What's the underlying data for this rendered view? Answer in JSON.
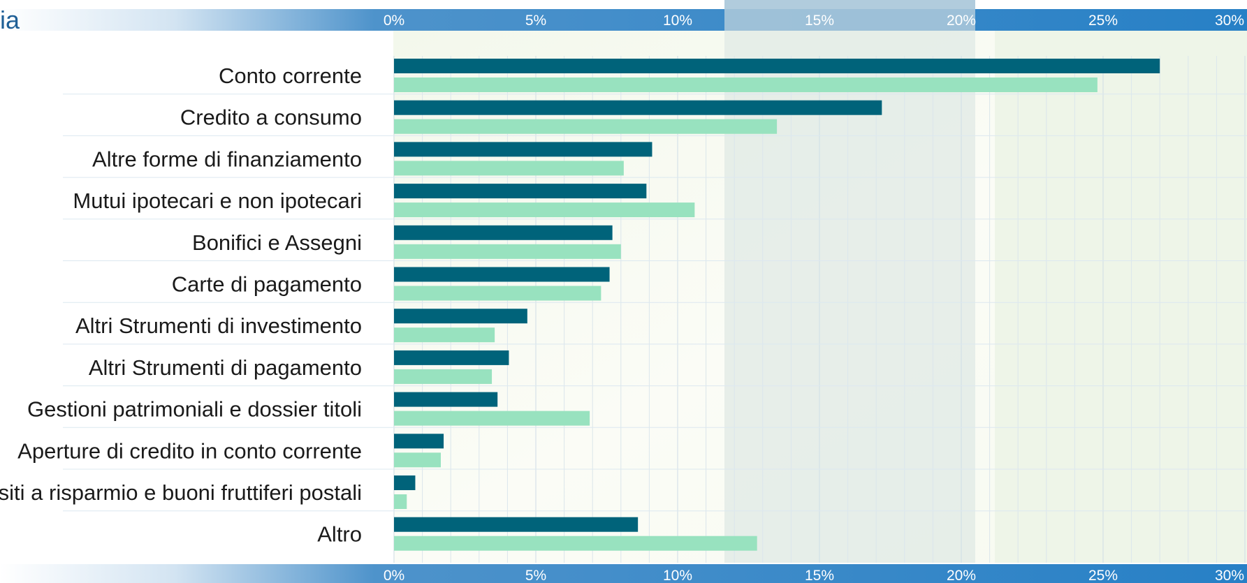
{
  "header_fragment": "ia",
  "colors": {
    "series_dark": "#00637a",
    "series_light": "#98e2bf",
    "axis_band": "#2b82c6",
    "title": "#1f5f96"
  },
  "chart_data": {
    "type": "bar",
    "orientation": "horizontal",
    "categories": [
      "Conto corrente",
      "Credito a consumo",
      "Altre forme di finanziamento",
      "Mutui ipotecari e non ipotecari",
      "Bonifici e Assegni",
      "Carte di pagamento",
      "Altri Strumenti di investimento",
      "Altri Strumenti di pagamento",
      "Gestioni patrimoniali e dossier titoli",
      "Aperture di credito in conto corrente",
      "siti a risparmio e buoni fruttiferi postali",
      "Altro"
    ],
    "series": [
      {
        "values": [
          27.0,
          17.2,
          9.1,
          8.9,
          7.7,
          7.6,
          4.7,
          4.05,
          3.65,
          1.75,
          0.75,
          8.6
        ]
      },
      {
        "values": [
          24.8,
          13.5,
          8.1,
          10.6,
          8.0,
          7.3,
          3.55,
          3.45,
          6.9,
          1.65,
          0.45,
          12.8
        ]
      }
    ],
    "xlim": [
      0,
      30
    ],
    "ticks": [
      "0%",
      "5%",
      "10%",
      "15%",
      "20%",
      "25%",
      "30%"
    ],
    "grid": true,
    "legend": "none"
  }
}
